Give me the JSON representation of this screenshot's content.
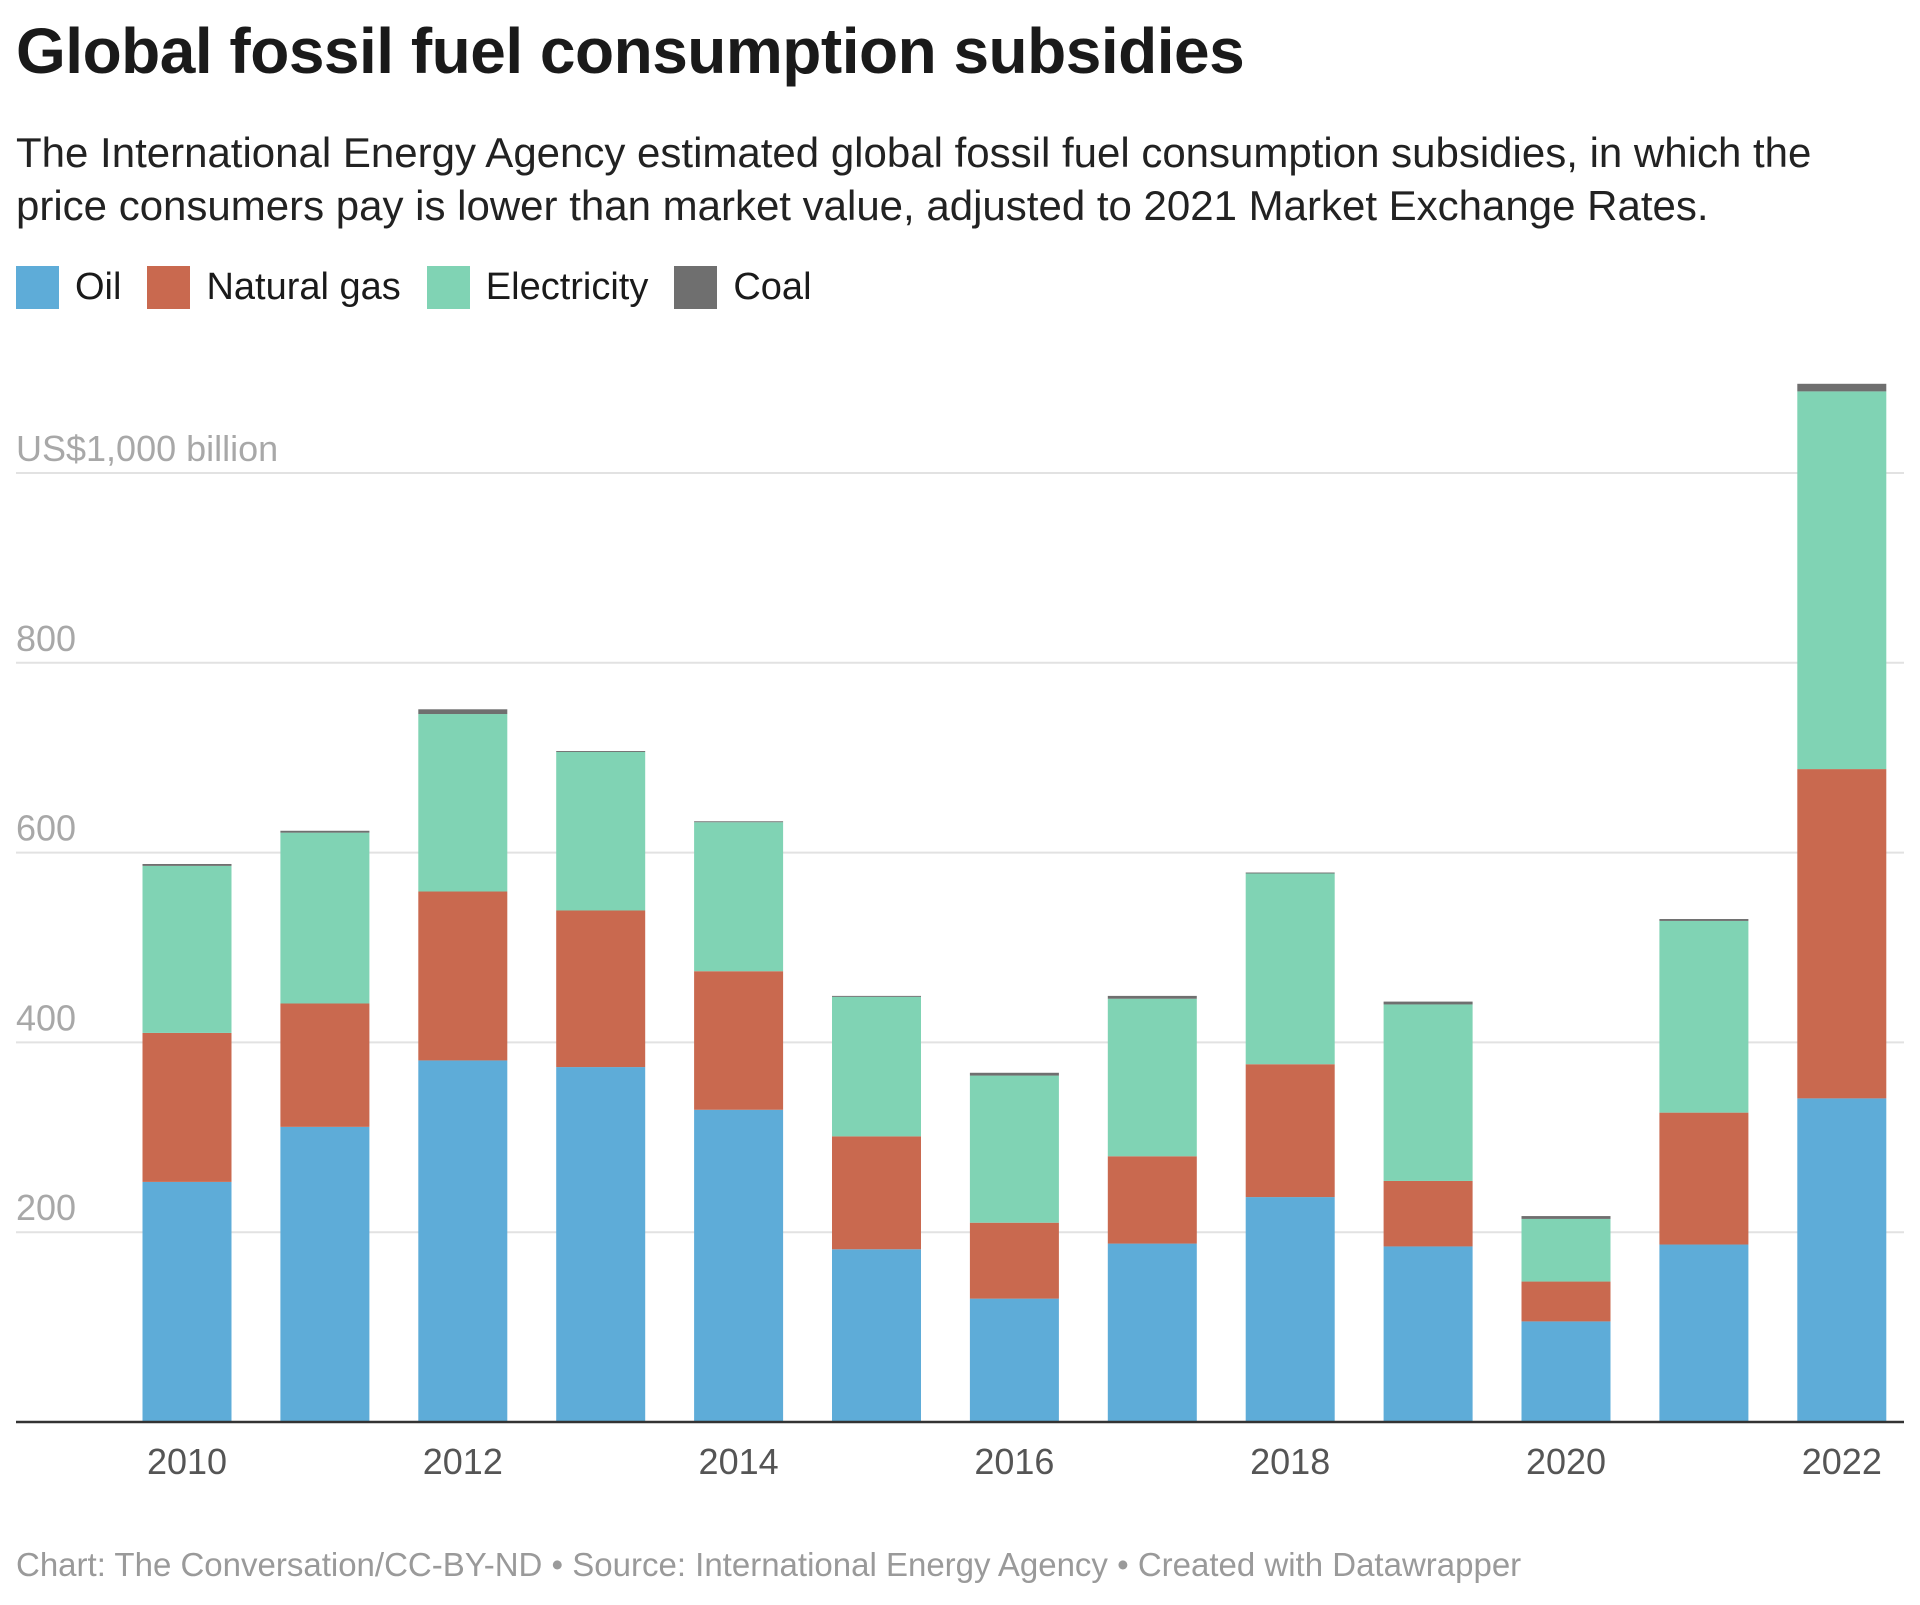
{
  "chart_data": {
    "type": "bar",
    "stacked": true,
    "title": "Global fossil fuel consumption subsidies",
    "subtitle": "The International Energy Agency estimated global fossil fuel consumption subsidies, in which the price consumers pay is lower than market value, adjusted to 2021 Market Exchange Rates.",
    "categories": [
      2010,
      2011,
      2012,
      2013,
      2014,
      2015,
      2016,
      2017,
      2018,
      2019,
      2020,
      2021,
      2022
    ],
    "series": [
      {
        "name": "Oil",
        "color": "#5eacd8",
        "values": [
          253,
          311,
          381,
          374,
          329,
          182,
          130,
          188,
          237,
          185,
          106,
          187,
          341
        ]
      },
      {
        "name": "Natural gas",
        "color": "#c9694f",
        "values": [
          157,
          130,
          178,
          165,
          146,
          119,
          80,
          92,
          140,
          69,
          42,
          139,
          347
        ]
      },
      {
        "name": "Electricity",
        "color": "#80d3b4",
        "values": [
          176,
          180,
          187,
          167,
          157,
          147,
          155,
          166,
          201,
          186,
          66,
          202,
          398
        ]
      },
      {
        "name": "Coal",
        "color": "#6f6f6f",
        "values": [
          2,
          2,
          5,
          1,
          1,
          1,
          3,
          3,
          1,
          3,
          3,
          2,
          8
        ]
      }
    ],
    "ylim": [
      0,
      1000
    ],
    "yticks": [
      200,
      400,
      600,
      800,
      1000
    ],
    "ytick_labels": [
      "200",
      "400",
      "600",
      "800",
      "US$1,000 billion"
    ],
    "xtick_labels": [
      "2010",
      "2012",
      "2014",
      "2016",
      "2018",
      "2020",
      "2022"
    ],
    "grid": true,
    "legend": "top-left"
  },
  "footer": "Chart: The Conversation/CC-BY-ND • Source: International Energy Agency • Created with Datawrapper"
}
